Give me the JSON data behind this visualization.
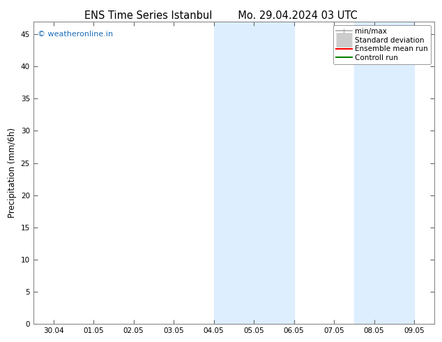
{
  "title_left": "ENS Time Series Istanbul",
  "title_right": "Mo. 29.04.2024 03 UTC",
  "ylabel": "Precipitation (mm/6h)",
  "ylim": [
    0,
    47
  ],
  "yticks": [
    0,
    5,
    10,
    15,
    20,
    25,
    30,
    35,
    40,
    45
  ],
  "xtick_labels": [
    "30.04",
    "01.05",
    "02.05",
    "03.05",
    "04.05",
    "05.05",
    "06.05",
    "07.05",
    "08.05",
    "09.05"
  ],
  "n_xticks": 10,
  "shaded_regions": [
    {
      "xmin": 4,
      "xmax": 6
    },
    {
      "xmin": 7.5,
      "xmax": 9.0
    }
  ],
  "shade_color": "#ddeeff",
  "watermark": "© weatheronline.in",
  "watermark_color": "#1a6bb5",
  "legend_items": [
    {
      "label": "min/max",
      "color": "#aaaaaa",
      "lw": 1.2,
      "style": "line_with_caps"
    },
    {
      "label": "Standard deviation",
      "color": "#cccccc",
      "lw": 5,
      "style": "thick_line"
    },
    {
      "label": "Ensemble mean run",
      "color": "#ff0000",
      "lw": 1.5,
      "style": "line"
    },
    {
      "label": "Controll run",
      "color": "#008000",
      "lw": 1.5,
      "style": "line"
    }
  ],
  "bg_color": "#ffffff",
  "plot_bg_color": "#ffffff",
  "tick_fontsize": 7.5,
  "title_fontsize": 10.5,
  "ylabel_fontsize": 8.5,
  "legend_fontsize": 7.5
}
